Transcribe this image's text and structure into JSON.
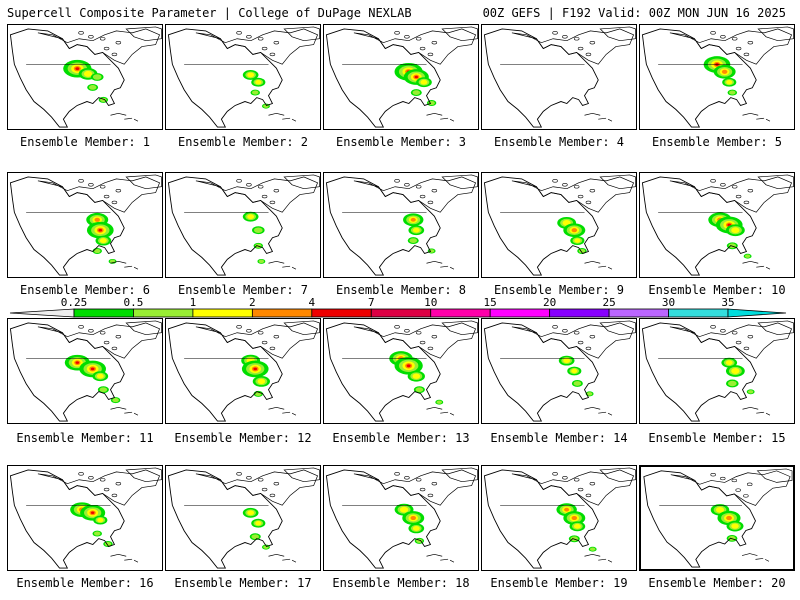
{
  "header": {
    "left_title": "Supercell Composite Parameter | College of DuPage NEXLAB",
    "right_title": "00Z GEFS | F192 Valid: 00Z MON JUN 16 2025"
  },
  "members": [
    {
      "label": "Ensemble Member: 1",
      "cells": [
        [
          0.45,
          0.42,
          0.9
        ],
        [
          0.52,
          0.47,
          0.6
        ],
        [
          0.58,
          0.5,
          0.4
        ],
        [
          0.55,
          0.6,
          0.35
        ],
        [
          0.62,
          0.72,
          0.3
        ]
      ]
    },
    {
      "label": "Ensemble Member: 2",
      "cells": [
        [
          0.55,
          0.48,
          0.5
        ],
        [
          0.6,
          0.55,
          0.45
        ],
        [
          0.58,
          0.65,
          0.3
        ],
        [
          0.65,
          0.78,
          0.25
        ]
      ]
    },
    {
      "label": "Ensemble Member: 3",
      "cells": [
        [
          0.55,
          0.45,
          0.9
        ],
        [
          0.6,
          0.5,
          0.8
        ],
        [
          0.65,
          0.55,
          0.5
        ],
        [
          0.6,
          0.65,
          0.35
        ],
        [
          0.7,
          0.75,
          0.3
        ]
      ]
    },
    {
      "label": "Ensemble Member: 4",
      "cells": []
    },
    {
      "label": "Ensemble Member: 5",
      "cells": [
        [
          0.5,
          0.38,
          0.85
        ],
        [
          0.55,
          0.45,
          0.7
        ],
        [
          0.58,
          0.55,
          0.45
        ],
        [
          0.6,
          0.65,
          0.3
        ]
      ]
    },
    {
      "label": "Ensemble Member: 6",
      "cells": [
        [
          0.58,
          0.45,
          0.7
        ],
        [
          0.6,
          0.55,
          0.85
        ],
        [
          0.62,
          0.65,
          0.5
        ],
        [
          0.58,
          0.75,
          0.3
        ],
        [
          0.68,
          0.85,
          0.25
        ]
      ]
    },
    {
      "label": "Ensemble Member: 7",
      "cells": [
        [
          0.55,
          0.42,
          0.5
        ],
        [
          0.6,
          0.55,
          0.4
        ],
        [
          0.6,
          0.7,
          0.3
        ],
        [
          0.62,
          0.85,
          0.25
        ]
      ]
    },
    {
      "label": "Ensemble Member: 8",
      "cells": [
        [
          0.58,
          0.45,
          0.65
        ],
        [
          0.6,
          0.55,
          0.5
        ],
        [
          0.58,
          0.65,
          0.35
        ],
        [
          0.7,
          0.75,
          0.25
        ]
      ]
    },
    {
      "label": "Ensemble Member: 9",
      "cells": [
        [
          0.55,
          0.48,
          0.6
        ],
        [
          0.6,
          0.55,
          0.7
        ],
        [
          0.62,
          0.65,
          0.45
        ],
        [
          0.65,
          0.75,
          0.3
        ]
      ]
    },
    {
      "label": "Ensemble Member: 10",
      "cells": [
        [
          0.52,
          0.45,
          0.75
        ],
        [
          0.58,
          0.5,
          0.85
        ],
        [
          0.62,
          0.55,
          0.6
        ],
        [
          0.6,
          0.7,
          0.35
        ],
        [
          0.7,
          0.8,
          0.25
        ]
      ]
    },
    {
      "label": "Ensemble Member: 11",
      "cells": [
        [
          0.45,
          0.42,
          0.8
        ],
        [
          0.55,
          0.48,
          0.85
        ],
        [
          0.6,
          0.55,
          0.5
        ],
        [
          0.62,
          0.68,
          0.35
        ],
        [
          0.7,
          0.78,
          0.3
        ]
      ]
    },
    {
      "label": "Ensemble Member: 12",
      "cells": [
        [
          0.55,
          0.4,
          0.6
        ],
        [
          0.58,
          0.48,
          0.85
        ],
        [
          0.62,
          0.6,
          0.55
        ],
        [
          0.6,
          0.72,
          0.3
        ]
      ]
    },
    {
      "label": "Ensemble Member: 13",
      "cells": [
        [
          0.5,
          0.38,
          0.75
        ],
        [
          0.55,
          0.45,
          0.9
        ],
        [
          0.6,
          0.55,
          0.55
        ],
        [
          0.62,
          0.68,
          0.35
        ],
        [
          0.75,
          0.8,
          0.25
        ]
      ]
    },
    {
      "label": "Ensemble Member: 14",
      "cells": [
        [
          0.55,
          0.4,
          0.5
        ],
        [
          0.6,
          0.5,
          0.45
        ],
        [
          0.62,
          0.62,
          0.35
        ],
        [
          0.7,
          0.72,
          0.25
        ]
      ]
    },
    {
      "label": "Ensemble Member: 15",
      "cells": [
        [
          0.58,
          0.42,
          0.5
        ],
        [
          0.62,
          0.5,
          0.6
        ],
        [
          0.6,
          0.62,
          0.4
        ],
        [
          0.72,
          0.7,
          0.25
        ]
      ]
    },
    {
      "label": "Ensemble Member: 16",
      "cells": [
        [
          0.48,
          0.42,
          0.75
        ],
        [
          0.55,
          0.45,
          0.8
        ],
        [
          0.6,
          0.52,
          0.45
        ],
        [
          0.58,
          0.65,
          0.3
        ],
        [
          0.65,
          0.75,
          0.3
        ]
      ]
    },
    {
      "label": "Ensemble Member: 17",
      "cells": [
        [
          0.55,
          0.45,
          0.5
        ],
        [
          0.6,
          0.55,
          0.45
        ],
        [
          0.58,
          0.68,
          0.35
        ],
        [
          0.65,
          0.78,
          0.25
        ]
      ]
    },
    {
      "label": "Ensemble Member: 18",
      "cells": [
        [
          0.52,
          0.42,
          0.6
        ],
        [
          0.58,
          0.5,
          0.7
        ],
        [
          0.6,
          0.6,
          0.5
        ],
        [
          0.62,
          0.72,
          0.3
        ]
      ]
    },
    {
      "label": "Ensemble Member: 19",
      "cells": [
        [
          0.55,
          0.42,
          0.65
        ],
        [
          0.6,
          0.5,
          0.7
        ],
        [
          0.62,
          0.58,
          0.5
        ],
        [
          0.6,
          0.7,
          0.35
        ],
        [
          0.72,
          0.8,
          0.25
        ]
      ]
    },
    {
      "label": "Ensemble Member: 20",
      "cells": [
        [
          0.52,
          0.42,
          0.6
        ],
        [
          0.58,
          0.5,
          0.75
        ],
        [
          0.62,
          0.58,
          0.55
        ],
        [
          0.6,
          0.7,
          0.35
        ]
      ]
    }
  ],
  "colorbar": {
    "ticks": [
      "0.25",
      "0.5",
      "1",
      "2",
      "4",
      "7",
      "10",
      "15",
      "20",
      "25",
      "30",
      "35"
    ],
    "colors": [
      "#ffffff",
      "#00dd00",
      "#99ee33",
      "#ffff00",
      "#ff8800",
      "#ee0000",
      "#dd0044",
      "#ff00aa",
      "#ff00ff",
      "#8800ff",
      "#bb66ff",
      "#33dddd"
    ],
    "under_color": "#eeeeee",
    "over_color": "#00dddd"
  }
}
